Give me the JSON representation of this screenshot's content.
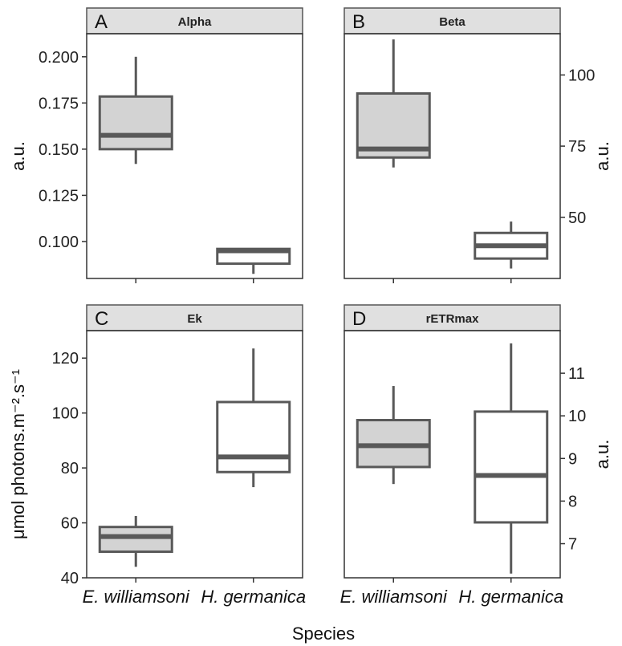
{
  "chart_data": {
    "type": "box",
    "xlabel": "Species",
    "categories": [
      "E. williamsoni",
      "H. germanica"
    ],
    "colors": {
      "E. williamsoni": "#d3d3d3",
      "H. germanica": "#ffffff",
      "line": "#595959",
      "strip": "#e0e0e0"
    },
    "panels": [
      {
        "letter": "A",
        "title": "Alpha",
        "ylabel": "a.u.",
        "ylabel_side": "left",
        "ylim": [
          0.08,
          0.2125
        ],
        "yticks": [
          0.1,
          0.125,
          0.15,
          0.175,
          0.2
        ],
        "ytick_labels": [
          "0.100",
          "0.125",
          "0.150",
          "0.175",
          "0.200"
        ],
        "boxes": [
          {
            "category": "E. williamsoni",
            "min": 0.142,
            "q1": 0.15,
            "median": 0.1575,
            "q3": 0.1785,
            "max": 0.2
          },
          {
            "category": "H. germanica",
            "min": 0.0825,
            "q1": 0.088,
            "median": 0.095,
            "q3": 0.096,
            "max": 0.0965
          }
        ]
      },
      {
        "letter": "B",
        "title": "Beta",
        "ylabel": "a.u.",
        "ylabel_side": "right",
        "ylim": [
          28.5,
          114.5
        ],
        "yticks": [
          50,
          75,
          100
        ],
        "ytick_labels": [
          "50",
          "75",
          "100"
        ],
        "boxes": [
          {
            "category": "E. williamsoni",
            "min": 67.5,
            "q1": 71,
            "median": 74,
            "q3": 93.5,
            "max": 112.5
          },
          {
            "category": "H. germanica",
            "min": 32,
            "q1": 35.5,
            "median": 40,
            "q3": 44.5,
            "max": 48.5
          }
        ]
      },
      {
        "letter": "C",
        "title": "Ek",
        "ylabel": "μmol photons.m⁻².s⁻¹",
        "ylabel_side": "left",
        "ylim": [
          40,
          130
        ],
        "yticks": [
          40,
          60,
          80,
          100,
          120
        ],
        "ytick_labels": [
          "40",
          "60",
          "80",
          "100",
          "120"
        ],
        "boxes": [
          {
            "category": "E. williamsoni",
            "min": 44,
            "q1": 49.5,
            "median": 55,
            "q3": 58.5,
            "max": 62.5
          },
          {
            "category": "H. germanica",
            "min": 73,
            "q1": 78.5,
            "median": 84,
            "q3": 104,
            "max": 123.5
          }
        ]
      },
      {
        "letter": "D",
        "title": "rETRmax",
        "ylabel": "a.u.",
        "ylabel_side": "right",
        "ylim": [
          6.2,
          12.0
        ],
        "yticks": [
          7,
          8,
          9,
          10,
          11
        ],
        "ytick_labels": [
          "7",
          "8",
          "9",
          "10",
          "11"
        ],
        "boxes": [
          {
            "category": "E. williamsoni",
            "min": 8.4,
            "q1": 8.8,
            "median": 9.3,
            "q3": 9.9,
            "max": 10.7
          },
          {
            "category": "H. germanica",
            "min": 6.3,
            "q1": 7.5,
            "median": 8.6,
            "q3": 10.1,
            "max": 11.7
          }
        ]
      }
    ]
  }
}
